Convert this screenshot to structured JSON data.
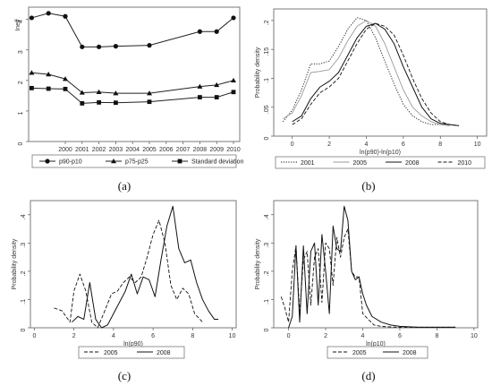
{
  "chart_data": [
    {
      "panel": "a",
      "type": "line",
      "ylabel": "Ineff",
      "xlabel": "",
      "x": [
        "1998",
        "1999",
        "2000",
        "2001",
        "2002",
        "2003",
        "2004",
        "2005",
        "2008",
        "2009",
        "2010"
      ],
      "xticks": [
        "2000",
        "2001",
        "2002",
        "2003",
        "2004",
        "2005",
        "2006",
        "2007",
        "2008",
        "2009",
        "2010"
      ],
      "yticks": [
        "0",
        "1",
        "2",
        "3",
        "4"
      ],
      "ylim": [
        0,
        4.4
      ],
      "grid": false,
      "legend_position": "bottom",
      "series": [
        {
          "name": "p90-p10",
          "marker": "circle",
          "x": [
            1998,
            1999,
            2000,
            2001,
            2002,
            2003,
            2005,
            2008,
            2009,
            2010
          ],
          "values": [
            4.05,
            4.2,
            4.1,
            3.1,
            3.1,
            3.12,
            3.15,
            3.6,
            3.6,
            4.05
          ]
        },
        {
          "name": "p75-p25",
          "marker": "triangle",
          "x": [
            1998,
            1999,
            2000,
            2001,
            2002,
            2003,
            2005,
            2008,
            2009,
            2010
          ],
          "values": [
            2.25,
            2.2,
            2.05,
            1.6,
            1.62,
            1.58,
            1.58,
            1.8,
            1.85,
            2.0
          ]
        },
        {
          "name": "Standard deviation",
          "marker": "square",
          "x": [
            1998,
            1999,
            2000,
            2001,
            2002,
            2003,
            2005,
            2008,
            2009,
            2010
          ],
          "values": [
            1.75,
            1.73,
            1.72,
            1.25,
            1.28,
            1.27,
            1.3,
            1.45,
            1.45,
            1.62
          ]
        }
      ]
    },
    {
      "panel": "b",
      "type": "line",
      "ylabel": "Probability density",
      "xlabel": "ln(p90)-ln(p10)",
      "xticks": [
        "0",
        "2",
        "4",
        "6",
        "8",
        "10"
      ],
      "yticks": [
        "0",
        ".05",
        ".1",
        ".15",
        ".2"
      ],
      "xlim": [
        -1,
        10.5
      ],
      "ylim": [
        0,
        0.22
      ],
      "legend_position": "bottom",
      "series": [
        {
          "name": "2001",
          "style": "dotted",
          "x": [
            -0.5,
            0.0,
            0.5,
            1.0,
            1.5,
            2.0,
            2.5,
            3.0,
            3.5,
            4.0,
            4.5,
            5.0,
            5.5,
            6.0,
            6.5,
            7.0,
            7.5,
            8.0,
            8.5
          ],
          "values": [
            0.025,
            0.045,
            0.08,
            0.125,
            0.125,
            0.13,
            0.155,
            0.185,
            0.205,
            0.2,
            0.17,
            0.13,
            0.09,
            0.055,
            0.035,
            0.025,
            0.02,
            0.02,
            0.018
          ]
        },
        {
          "name": "2005",
          "style": "solid-light",
          "x": [
            -0.5,
            0.0,
            0.5,
            1.0,
            1.5,
            2.0,
            2.5,
            3.0,
            3.5,
            4.0,
            4.5,
            5.0,
            5.5,
            6.0,
            6.5,
            7.0,
            7.5,
            8.0,
            8.5
          ],
          "values": [
            0.03,
            0.04,
            0.07,
            0.11,
            0.112,
            0.115,
            0.135,
            0.165,
            0.19,
            0.2,
            0.19,
            0.16,
            0.12,
            0.08,
            0.05,
            0.035,
            0.025,
            0.02,
            0.018
          ]
        },
        {
          "name": "2008",
          "style": "solid",
          "x": [
            0.0,
            0.5,
            1.0,
            1.5,
            2.0,
            2.5,
            3.0,
            3.5,
            4.0,
            4.5,
            5.0,
            5.5,
            6.0,
            6.5,
            7.0,
            7.5,
            8.0,
            8.5,
            9.0
          ],
          "values": [
            0.025,
            0.035,
            0.065,
            0.085,
            0.095,
            0.11,
            0.14,
            0.17,
            0.19,
            0.195,
            0.185,
            0.16,
            0.12,
            0.085,
            0.05,
            0.03,
            0.022,
            0.02,
            0.018
          ]
        },
        {
          "name": "2010",
          "style": "dashed",
          "x": [
            0.0,
            0.5,
            1.0,
            1.5,
            2.0,
            2.5,
            3.0,
            3.5,
            4.0,
            4.5,
            5.0,
            5.5,
            6.0,
            6.5,
            7.0,
            7.5,
            8.0,
            8.5,
            9.0
          ],
          "values": [
            0.02,
            0.03,
            0.055,
            0.075,
            0.085,
            0.1,
            0.13,
            0.16,
            0.185,
            0.195,
            0.19,
            0.175,
            0.14,
            0.1,
            0.065,
            0.04,
            0.025,
            0.02,
            0.018
          ]
        }
      ]
    },
    {
      "panel": "c",
      "type": "line",
      "ylabel": "Probability density",
      "xlabel": "ln(p90)",
      "xticks": [
        "0",
        "2",
        "4",
        "6",
        "8",
        "10"
      ],
      "yticks": [
        "0",
        ".1",
        ".2",
        ".3",
        ".4"
      ],
      "xlim": [
        -0.2,
        10.2
      ],
      "ylim": [
        0,
        0.45
      ],
      "legend_position": "bottom",
      "series": [
        {
          "name": "2005",
          "style": "dashed",
          "x": [
            1.0,
            1.4,
            1.8,
            2.0,
            2.3,
            2.6,
            2.9,
            3.2,
            3.5,
            3.9,
            4.2,
            4.5,
            4.8,
            5.1,
            5.4,
            5.7,
            6.0,
            6.3,
            6.6,
            6.9,
            7.2,
            7.5,
            7.8,
            8.1,
            8.5
          ],
          "values": [
            0.07,
            0.06,
            0.02,
            0.13,
            0.19,
            0.13,
            0.02,
            0.0,
            0.05,
            0.12,
            0.13,
            0.16,
            0.18,
            0.16,
            0.18,
            0.25,
            0.33,
            0.38,
            0.3,
            0.15,
            0.1,
            0.14,
            0.12,
            0.05,
            0.02
          ]
        },
        {
          "name": "2008",
          "style": "solid",
          "x": [
            1.9,
            2.2,
            2.5,
            2.8,
            3.1,
            3.4,
            3.7,
            4.0,
            4.3,
            4.6,
            4.9,
            5.2,
            5.5,
            5.8,
            6.1,
            6.4,
            6.7,
            7.0,
            7.3,
            7.6,
            7.9,
            8.2,
            8.5,
            8.8,
            9.1,
            9.3
          ],
          "values": [
            0.02,
            0.04,
            0.03,
            0.16,
            0.03,
            0.0,
            0.01,
            0.05,
            0.09,
            0.13,
            0.19,
            0.12,
            0.18,
            0.17,
            0.11,
            0.24,
            0.36,
            0.43,
            0.28,
            0.23,
            0.24,
            0.16,
            0.1,
            0.06,
            0.03,
            0.03
          ]
        }
      ]
    },
    {
      "panel": "d",
      "type": "line",
      "ylabel": "Probability density",
      "xlabel": "ln(p10)",
      "xticks": [
        "0",
        "2",
        "4",
        "6",
        "8",
        "10"
      ],
      "yticks": [
        "0",
        ".1",
        ".2",
        ".3",
        ".4"
      ],
      "xlim": [
        -0.8,
        10.2
      ],
      "ylim": [
        0,
        0.45
      ],
      "legend_position": "bottom",
      "series": [
        {
          "name": "2005",
          "style": "dashed",
          "x": [
            -0.4,
            -0.2,
            0.0,
            0.2,
            0.4,
            0.6,
            0.8,
            1.0,
            1.2,
            1.4,
            1.6,
            1.8,
            2.0,
            2.2,
            2.4,
            2.6,
            2.8,
            3.0,
            3.2,
            3.4,
            3.6,
            3.8,
            4.0,
            4.3,
            4.6,
            5.0,
            5.5,
            6.0,
            7.0,
            8.0,
            9.0
          ],
          "values": [
            0.11,
            0.07,
            0.02,
            0.2,
            0.29,
            0.05,
            0.24,
            0.27,
            0.08,
            0.25,
            0.28,
            0.09,
            0.3,
            0.28,
            0.15,
            0.32,
            0.25,
            0.32,
            0.35,
            0.2,
            0.18,
            0.18,
            0.05,
            0.03,
            0.01,
            0.005,
            0.003,
            0.002,
            0.002,
            0.002,
            0.002
          ]
        },
        {
          "name": "2008",
          "style": "solid",
          "x": [
            0.0,
            0.2,
            0.4,
            0.6,
            0.8,
            1.0,
            1.2,
            1.4,
            1.6,
            1.8,
            2.0,
            2.2,
            2.4,
            2.6,
            2.8,
            3.0,
            3.2,
            3.4,
            3.6,
            3.8,
            4.0,
            4.2,
            4.5,
            5.0,
            5.5,
            6.0,
            7.0,
            8.0,
            9.0
          ],
          "values": [
            0.0,
            0.04,
            0.29,
            0.02,
            0.29,
            0.05,
            0.27,
            0.3,
            0.08,
            0.33,
            0.2,
            0.05,
            0.36,
            0.28,
            0.27,
            0.43,
            0.38,
            0.2,
            0.17,
            0.18,
            0.12,
            0.08,
            0.04,
            0.02,
            0.01,
            0.005,
            0.002,
            0.002,
            0.002
          ]
        }
      ]
    }
  ],
  "panel_tags": [
    "(a)",
    "(b)",
    "(c)",
    "(d)"
  ],
  "colors": {
    "line": "#111111",
    "light_line": "#9a9a9a",
    "frame": "#7a7a7a"
  }
}
